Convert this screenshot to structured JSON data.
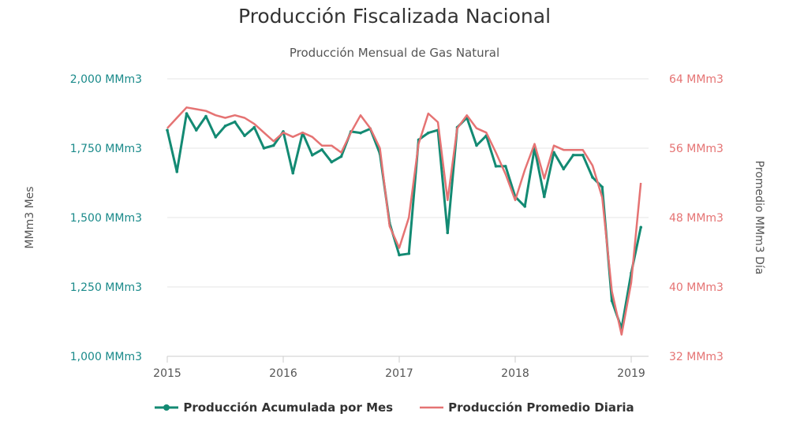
{
  "chart_data": {
    "type": "line",
    "title": "Producción Fiscalizada Nacional",
    "subtitle": "Producción Mensual de Gas Natural",
    "y_left": {
      "label": "MMm3 Mes",
      "ticks": [
        "2,000 MMm3",
        "1,750 MMm3",
        "1,500 MMm3",
        "1,250 MMm3",
        "1,000 MMm3"
      ],
      "tick_values": [
        2000,
        1750,
        1500,
        1250,
        1000
      ],
      "range": [
        1000,
        2000
      ],
      "color": "#1a8a8a"
    },
    "y_right": {
      "label": "Promedio MMm3 Día",
      "ticks": [
        "64 MMm3",
        "56 MMm3",
        "48 MMm3",
        "40 MMm3",
        "32 MMm3"
      ],
      "tick_values": [
        64,
        56,
        48,
        40,
        32
      ],
      "range": [
        32,
        64
      ],
      "color": "#e57373"
    },
    "x_axis": {
      "ticks": [
        "2015",
        "2016",
        "2017",
        "2018",
        "2019"
      ],
      "tick_values": [
        2015,
        2016,
        2017,
        2018,
        2019
      ],
      "range": [
        2015,
        2019.2
      ]
    },
    "grid": true,
    "legend_position": "bottom",
    "series": [
      {
        "name": "Producción Acumulada por Mes",
        "axis": "left",
        "color": "#138a73",
        "marker": "circle",
        "values": [
          1815,
          1665,
          1875,
          1815,
          1865,
          1790,
          1830,
          1845,
          1795,
          1825,
          1750,
          1760,
          1810,
          1660,
          1805,
          1725,
          1745,
          1700,
          1720,
          1810,
          1805,
          1820,
          1730,
          1480,
          1365,
          1370,
          1780,
          1805,
          1815,
          1445,
          1825,
          1860,
          1760,
          1795,
          1685,
          1685,
          1575,
          1540,
          1750,
          1575,
          1735,
          1675,
          1725,
          1725,
          1645,
          1610,
          1200,
          1100,
          1300,
          1465
        ]
      },
      {
        "name": "Producción Promedio Diaria",
        "axis": "right",
        "color": "#e57373",
        "marker": "none",
        "values": [
          58.3,
          59.5,
          60.7,
          60.5,
          60.3,
          59.8,
          59.5,
          59.8,
          59.5,
          58.8,
          57.8,
          56.8,
          57.8,
          57.3,
          57.8,
          57.3,
          56.3,
          56.3,
          55.5,
          57.8,
          59.8,
          58.3,
          56.0,
          47.0,
          44.5,
          48.0,
          56.5,
          60.0,
          59.0,
          50.0,
          58.3,
          59.8,
          58.3,
          57.8,
          55.5,
          53.0,
          50.0,
          53.5,
          56.5,
          52.5,
          56.3,
          55.8,
          55.8,
          55.8,
          54.0,
          50.3,
          39.5,
          34.5,
          40.5,
          52.0
        ]
      }
    ],
    "start": "2015-01",
    "step": "month"
  }
}
